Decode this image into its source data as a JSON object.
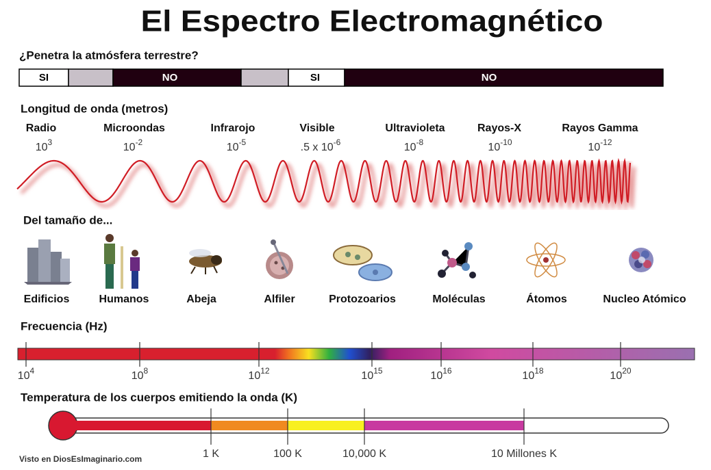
{
  "title": "El Espectro Electromagnético",
  "atmosphere": {
    "label": "¿Penetra la atmósfera terrestre?",
    "segments": [
      "SI",
      "NO",
      "SI",
      "NO"
    ]
  },
  "wavelength": {
    "label": "Longitud de onda (metros)",
    "bands": [
      {
        "name": "Radio",
        "base": "10",
        "exp": "3"
      },
      {
        "name": "Microondas",
        "base": "10",
        "exp": "-2"
      },
      {
        "name": "Infrarojo",
        "base": "10",
        "exp": "-5"
      },
      {
        "name": "Visible",
        "base": ".5 x 10",
        "exp": "-6"
      },
      {
        "name": "Ultravioleta",
        "base": "10",
        "exp": "-8"
      },
      {
        "name": "Rayos-X",
        "base": "10",
        "exp": "-10"
      },
      {
        "name": "Rayos Gamma",
        "base": "10",
        "exp": "-12"
      }
    ]
  },
  "sizes": {
    "label": "Del tamaño de...",
    "items": [
      "Edificios",
      "Humanos",
      "Abeja",
      "Alfiler",
      "Protozoarios",
      "Moléculas",
      "Átomos",
      "Nucleo Atómico"
    ]
  },
  "frequency": {
    "label": "Frecuencia (Hz)",
    "ticks": [
      {
        "base": "10",
        "exp": "4"
      },
      {
        "base": "10",
        "exp": "8"
      },
      {
        "base": "10",
        "exp": "12"
      },
      {
        "base": "10",
        "exp": "15"
      },
      {
        "base": "10",
        "exp": "16"
      },
      {
        "base": "10",
        "exp": "18"
      },
      {
        "base": "10",
        "exp": "20"
      }
    ]
  },
  "temperature": {
    "label": "Temperatura de los cuerpos emitiendo la onda (K)",
    "ticks": [
      "1 K",
      "100 K",
      "10,000 K",
      "10 Millones K"
    ]
  },
  "footer": "Visto en DiosEsImaginario.com"
}
